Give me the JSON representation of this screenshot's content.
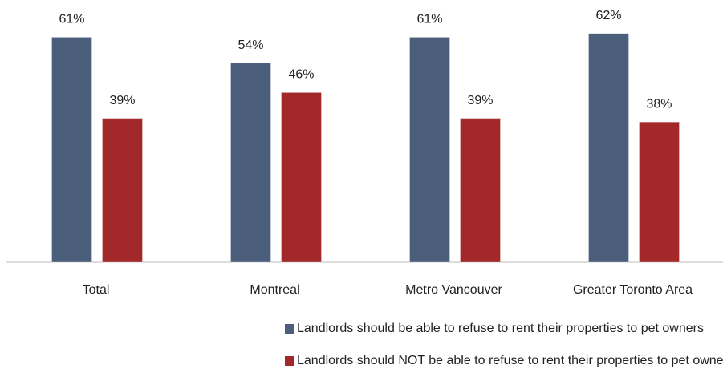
{
  "chart_data": {
    "type": "bar",
    "categories": [
      "Total",
      "Montreal",
      "Metro Vancouver",
      "Greater Toronto Area"
    ],
    "series": [
      {
        "name": "Landlords should be able to refuse to rent their properties to pet owners",
        "color": "#4b5e7c",
        "values": [
          61,
          54,
          61,
          62
        ],
        "value_labels": [
          "61%",
          "54%",
          "61%",
          "62%"
        ]
      },
      {
        "name": "Landlords should NOT be able to refuse to rent their properties to pet owners",
        "color": "#a3282a",
        "values": [
          39,
          46,
          39,
          38
        ],
        "value_labels": [
          "39%",
          "46%",
          "39%",
          "38%"
        ]
      }
    ],
    "ylim": [
      0,
      70
    ],
    "legend": "bottom"
  }
}
